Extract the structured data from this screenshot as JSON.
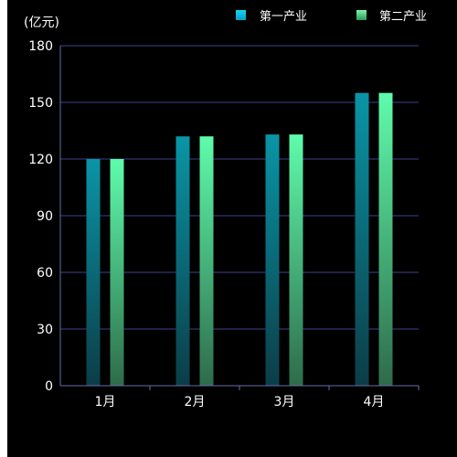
{
  "chart_data": {
    "type": "bar",
    "unit_label": "(亿元)",
    "categories": [
      "1月",
      "2月",
      "3月",
      "4月"
    ],
    "series": [
      {
        "name": "第一产业",
        "values": [
          120,
          132,
          133,
          155
        ]
      },
      {
        "name": "第二产业",
        "values": [
          120,
          132,
          133,
          155
        ]
      }
    ],
    "ylim": [
      0,
      180
    ],
    "yticks": [
      "0",
      "30",
      "60",
      "90",
      "120",
      "150",
      "180"
    ],
    "grid": true,
    "legend_position": "top-right",
    "colors": {
      "background": "#000000",
      "grid": "#3f3f8f",
      "axis": "#6a6aa8",
      "series_1_top": "#0a95a6",
      "series_1_bottom": "#0b3d47",
      "series_2_top": "#5ffcac",
      "series_2_bottom": "#2e6b4a",
      "legend_1_top": "#12d6f0",
      "legend_1_bottom": "#0aa0c4",
      "legend_2_top": "#80f5a8",
      "legend_2_bottom": "#2c9a5c"
    }
  }
}
